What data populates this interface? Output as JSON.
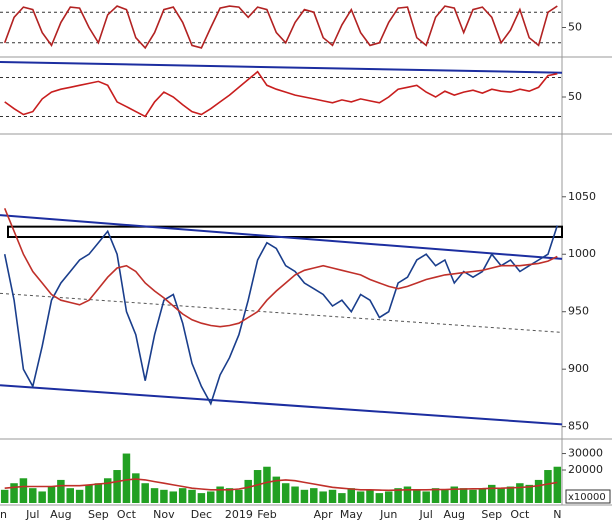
{
  "chart_data": [
    {
      "type": "line",
      "ylim": [
        0,
        100
      ],
      "yticks": [
        50
      ],
      "levels": [
        80,
        20
      ],
      "series": [
        {
          "color": "#b22222",
          "values": [
            20,
            70,
            90,
            85,
            40,
            15,
            60,
            90,
            88,
            50,
            20,
            75,
            92,
            85,
            30,
            10,
            40,
            85,
            90,
            60,
            15,
            10,
            50,
            88,
            92,
            90,
            70,
            90,
            85,
            40,
            20,
            60,
            85,
            80,
            30,
            15,
            55,
            85,
            40,
            15,
            20,
            60,
            88,
            90,
            30,
            15,
            70,
            92,
            88,
            40,
            85,
            90,
            70,
            20,
            45,
            85,
            30,
            15,
            80,
            92
          ]
        }
      ]
    },
    {
      "type": "line",
      "ylim": [
        14,
        86
      ],
      "yticks": [
        50
      ],
      "levels": [
        70,
        30
      ],
      "trendlines": [
        {
          "color": "#1c2ea0",
          "values": [
            86,
            75
          ]
        }
      ],
      "series": [
        {
          "color": "#c81e1e",
          "values": [
            45,
            38,
            32,
            35,
            48,
            55,
            58,
            60,
            62,
            64,
            66,
            62,
            45,
            40,
            35,
            30,
            45,
            55,
            50,
            42,
            35,
            32,
            38,
            45,
            52,
            60,
            68,
            76,
            62,
            58,
            55,
            52,
            50,
            48,
            46,
            44,
            47,
            45,
            48,
            46,
            44,
            50,
            58,
            60,
            62,
            55,
            50,
            56,
            52,
            55,
            57,
            54,
            58,
            56,
            55,
            58,
            56,
            60,
            72,
            74
          ]
        }
      ]
    },
    {
      "type": "line",
      "ylim": [
        841,
        1102
      ],
      "yticks": [
        850,
        900,
        950,
        1000,
        1050
      ],
      "trendlines": [
        {
          "color": "#1c2ea0",
          "values": [
            1034,
            996
          ]
        },
        {
          "color": "#1c2ea0",
          "values": [
            886,
            852
          ]
        },
        {
          "color": "#555555",
          "dashed": true,
          "values": [
            966,
            932
          ]
        }
      ],
      "band": [
        1015,
        1024
      ],
      "series": [
        {
          "color": "#1a3e8c",
          "values": [
            1000,
            960,
            900,
            885,
            920,
            960,
            975,
            985,
            995,
            1000,
            1010,
            1020,
            1000,
            950,
            930,
            890,
            930,
            960,
            965,
            940,
            905,
            885,
            870,
            895,
            910,
            930,
            960,
            995,
            1010,
            1005,
            990,
            985,
            975,
            970,
            965,
            955,
            960,
            950,
            965,
            960,
            945,
            950,
            975,
            980,
            995,
            1000,
            990,
            995,
            975,
            985,
            980,
            985,
            1000,
            990,
            995,
            985,
            990,
            995,
            1000,
            1025
          ]
        },
        {
          "color": "#c0302a",
          "values": [
            1040,
            1020,
            1000,
            985,
            975,
            965,
            960,
            958,
            956,
            960,
            970,
            980,
            988,
            990,
            985,
            975,
            968,
            962,
            955,
            948,
            943,
            940,
            938,
            937,
            938,
            940,
            945,
            950,
            960,
            968,
            975,
            982,
            986,
            988,
            990,
            988,
            986,
            984,
            982,
            978,
            975,
            972,
            970,
            972,
            975,
            978,
            980,
            982,
            983,
            984,
            985,
            986,
            988,
            990,
            990,
            990,
            991,
            992,
            994,
            998
          ]
        }
      ]
    },
    {
      "type": "bar",
      "ylim": [
        0,
        37000
      ],
      "yticks": [
        30000,
        20000
      ],
      "unit_label": "x10000",
      "categories": [
        "n",
        null,
        null,
        "Jul",
        null,
        null,
        "Aug",
        null,
        null,
        null,
        "Sep",
        null,
        null,
        "Oct",
        null,
        null,
        null,
        "Nov",
        null,
        null,
        null,
        "Dec",
        null,
        null,
        null,
        "2019",
        null,
        null,
        "Feb",
        null,
        null,
        null,
        null,
        null,
        "Apr",
        null,
        null,
        "May",
        null,
        null,
        null,
        "Jun",
        null,
        null,
        null,
        "Jul",
        null,
        null,
        "Aug",
        null,
        null,
        null,
        "Sep",
        null,
        null,
        "Oct",
        null,
        null,
        null,
        "N"
      ],
      "series": [
        {
          "color": "#22a022",
          "values": [
            8000,
            12000,
            15000,
            9000,
            7000,
            10000,
            14000,
            9000,
            8000,
            11000,
            12000,
            15000,
            20000,
            30000,
            18000,
            12000,
            9000,
            8000,
            7000,
            9000,
            8000,
            6000,
            7000,
            10000,
            9000,
            8000,
            14000,
            20000,
            22000,
            16000,
            12000,
            10000,
            8000,
            9000,
            7000,
            8000,
            6000,
            9000,
            7000,
            8000,
            6000,
            7000,
            9000,
            10000,
            8000,
            7000,
            9000,
            8000,
            10000,
            9000,
            8000,
            9000,
            11000,
            9000,
            10000,
            12000,
            11000,
            14000,
            20000,
            22000
          ]
        },
        {
          "color": "#c0302a",
          "values": [
            9000,
            9500,
            10000,
            10000,
            10000,
            10000,
            10500,
            10500,
            10500,
            11000,
            11500,
            12000,
            13000,
            14000,
            14500,
            14000,
            13000,
            12000,
            11000,
            10000,
            9000,
            8500,
            8000,
            8000,
            8000,
            8500,
            9500,
            11000,
            12500,
            13500,
            14000,
            13500,
            12500,
            11500,
            10500,
            9500,
            9000,
            8500,
            8000,
            8000,
            7800,
            7700,
            7800,
            8000,
            8000,
            8000,
            8100,
            8200,
            8400,
            8500,
            8600,
            8700,
            8900,
            9000,
            9200,
            9400,
            9800,
            10500,
            11500,
            12500
          ]
        }
      ]
    }
  ]
}
